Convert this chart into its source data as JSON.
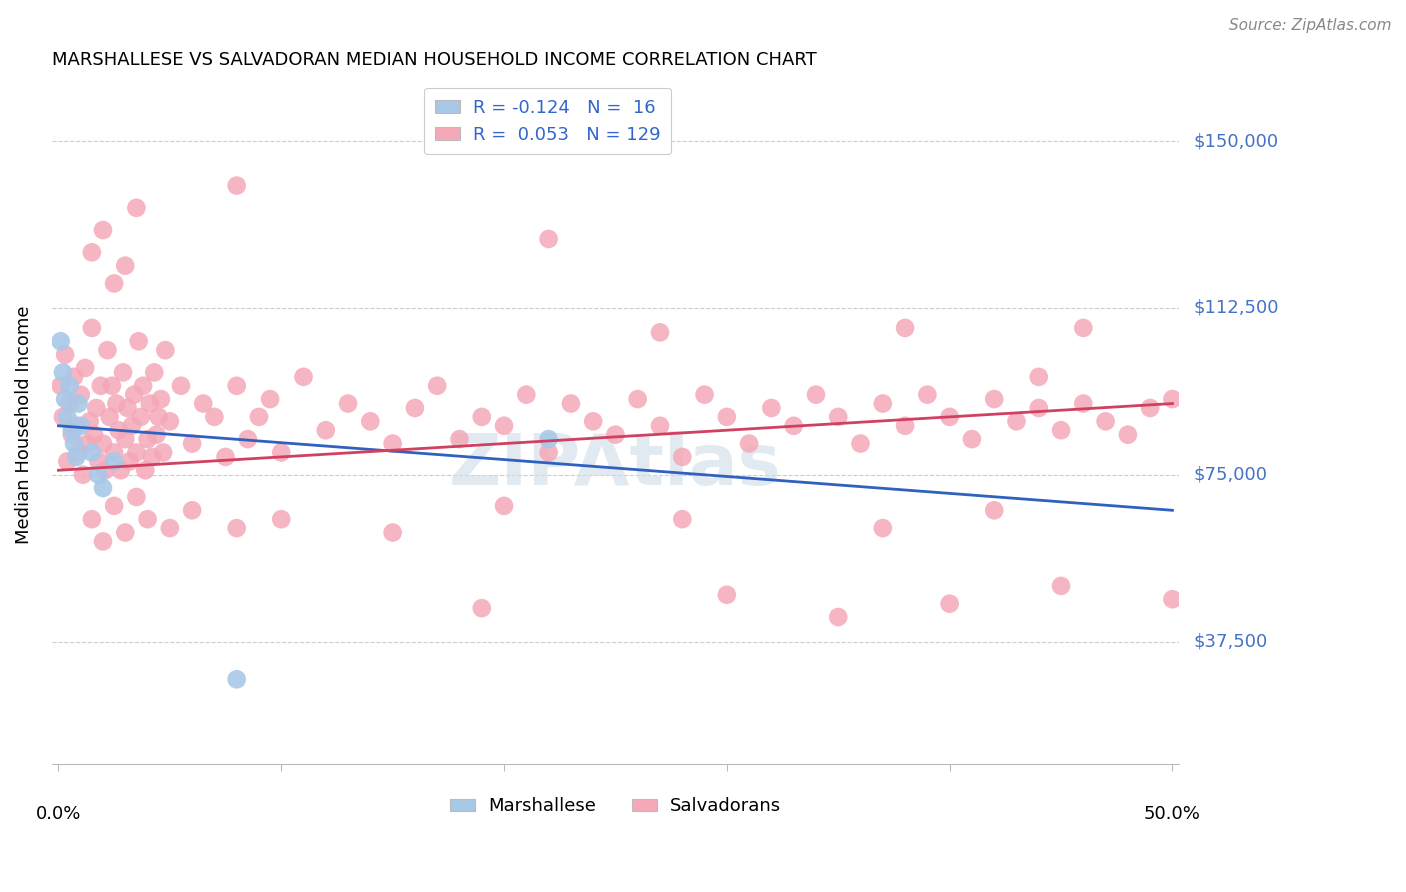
{
  "title": "MARSHALLESE VS SALVADORAN MEDIAN HOUSEHOLD INCOME CORRELATION CHART",
  "source": "Source: ZipAtlas.com",
  "ylabel": "Median Household Income",
  "ytick_labels": [
    "$150,000",
    "$112,500",
    "$75,000",
    "$37,500"
  ],
  "ytick_values": [
    150000,
    112500,
    75000,
    37500
  ],
  "ymin": 10000,
  "ymax": 162500,
  "xmin": -0.003,
  "xmax": 0.503,
  "blue_color": "#a8c8e8",
  "pink_color": "#f4a8b8",
  "blue_line_color": "#3060c0",
  "pink_line_color": "#d04060",
  "blue_scatter": [
    [
      0.001,
      105000
    ],
    [
      0.002,
      98000
    ],
    [
      0.003,
      92000
    ],
    [
      0.004,
      88000
    ],
    [
      0.005,
      95000
    ],
    [
      0.006,
      85000
    ],
    [
      0.007,
      82000
    ],
    [
      0.008,
      79000
    ],
    [
      0.009,
      91000
    ],
    [
      0.01,
      86000
    ],
    [
      0.015,
      80000
    ],
    [
      0.018,
      75000
    ],
    [
      0.02,
      72000
    ],
    [
      0.025,
      78000
    ],
    [
      0.22,
      83000
    ],
    [
      0.08,
      29000
    ]
  ],
  "pink_scatter": [
    [
      0.001,
      95000
    ],
    [
      0.002,
      88000
    ],
    [
      0.003,
      102000
    ],
    [
      0.004,
      78000
    ],
    [
      0.005,
      91000
    ],
    [
      0.006,
      84000
    ],
    [
      0.007,
      97000
    ],
    [
      0.008,
      86000
    ],
    [
      0.009,
      80000
    ],
    [
      0.01,
      93000
    ],
    [
      0.011,
      75000
    ],
    [
      0.012,
      99000
    ],
    [
      0.013,
      82000
    ],
    [
      0.014,
      87000
    ],
    [
      0.015,
      108000
    ],
    [
      0.016,
      84000
    ],
    [
      0.017,
      90000
    ],
    [
      0.018,
      78000
    ],
    [
      0.019,
      95000
    ],
    [
      0.02,
      82000
    ],
    [
      0.021,
      76000
    ],
    [
      0.022,
      103000
    ],
    [
      0.023,
      88000
    ],
    [
      0.024,
      95000
    ],
    [
      0.025,
      80000
    ],
    [
      0.026,
      91000
    ],
    [
      0.027,
      85000
    ],
    [
      0.028,
      76000
    ],
    [
      0.029,
      98000
    ],
    [
      0.03,
      83000
    ],
    [
      0.031,
      90000
    ],
    [
      0.032,
      78000
    ],
    [
      0.033,
      86000
    ],
    [
      0.034,
      93000
    ],
    [
      0.035,
      80000
    ],
    [
      0.036,
      105000
    ],
    [
      0.037,
      88000
    ],
    [
      0.038,
      95000
    ],
    [
      0.039,
      76000
    ],
    [
      0.04,
      83000
    ],
    [
      0.041,
      91000
    ],
    [
      0.042,
      79000
    ],
    [
      0.043,
      98000
    ],
    [
      0.044,
      84000
    ],
    [
      0.045,
      88000
    ],
    [
      0.046,
      92000
    ],
    [
      0.047,
      80000
    ],
    [
      0.048,
      103000
    ],
    [
      0.05,
      87000
    ],
    [
      0.055,
      95000
    ],
    [
      0.06,
      82000
    ],
    [
      0.065,
      91000
    ],
    [
      0.07,
      88000
    ],
    [
      0.075,
      79000
    ],
    [
      0.08,
      95000
    ],
    [
      0.085,
      83000
    ],
    [
      0.09,
      88000
    ],
    [
      0.095,
      92000
    ],
    [
      0.1,
      80000
    ],
    [
      0.11,
      97000
    ],
    [
      0.12,
      85000
    ],
    [
      0.13,
      91000
    ],
    [
      0.14,
      87000
    ],
    [
      0.15,
      82000
    ],
    [
      0.16,
      90000
    ],
    [
      0.17,
      95000
    ],
    [
      0.18,
      83000
    ],
    [
      0.19,
      88000
    ],
    [
      0.2,
      86000
    ],
    [
      0.21,
      93000
    ],
    [
      0.22,
      80000
    ],
    [
      0.23,
      91000
    ],
    [
      0.24,
      87000
    ],
    [
      0.25,
      84000
    ],
    [
      0.26,
      92000
    ],
    [
      0.27,
      86000
    ],
    [
      0.28,
      79000
    ],
    [
      0.29,
      93000
    ],
    [
      0.3,
      88000
    ],
    [
      0.31,
      82000
    ],
    [
      0.32,
      90000
    ],
    [
      0.33,
      86000
    ],
    [
      0.34,
      93000
    ],
    [
      0.35,
      88000
    ],
    [
      0.36,
      82000
    ],
    [
      0.37,
      91000
    ],
    [
      0.38,
      86000
    ],
    [
      0.39,
      93000
    ],
    [
      0.4,
      88000
    ],
    [
      0.41,
      83000
    ],
    [
      0.42,
      92000
    ],
    [
      0.43,
      87000
    ],
    [
      0.44,
      90000
    ],
    [
      0.45,
      85000
    ],
    [
      0.46,
      91000
    ],
    [
      0.47,
      87000
    ],
    [
      0.48,
      84000
    ],
    [
      0.49,
      90000
    ],
    [
      0.5,
      92000
    ],
    [
      0.015,
      65000
    ],
    [
      0.02,
      60000
    ],
    [
      0.025,
      68000
    ],
    [
      0.03,
      62000
    ],
    [
      0.035,
      70000
    ],
    [
      0.04,
      65000
    ],
    [
      0.05,
      63000
    ],
    [
      0.06,
      67000
    ],
    [
      0.08,
      63000
    ],
    [
      0.1,
      65000
    ],
    [
      0.15,
      62000
    ],
    [
      0.2,
      68000
    ],
    [
      0.28,
      65000
    ],
    [
      0.37,
      63000
    ],
    [
      0.42,
      67000
    ],
    [
      0.015,
      125000
    ],
    [
      0.02,
      130000
    ],
    [
      0.025,
      118000
    ],
    [
      0.03,
      122000
    ],
    [
      0.035,
      135000
    ],
    [
      0.08,
      140000
    ],
    [
      0.22,
      128000
    ],
    [
      0.27,
      107000
    ],
    [
      0.38,
      108000
    ],
    [
      0.44,
      97000
    ],
    [
      0.46,
      108000
    ],
    [
      0.19,
      45000
    ],
    [
      0.3,
      48000
    ],
    [
      0.35,
      43000
    ],
    [
      0.4,
      46000
    ],
    [
      0.45,
      50000
    ],
    [
      0.5,
      47000
    ]
  ],
  "blue_line_x": [
    0.0,
    0.5
  ],
  "blue_line_y": [
    86000,
    67000
  ],
  "pink_line_x": [
    0.0,
    0.5
  ],
  "pink_line_y": [
    76000,
    91000
  ]
}
